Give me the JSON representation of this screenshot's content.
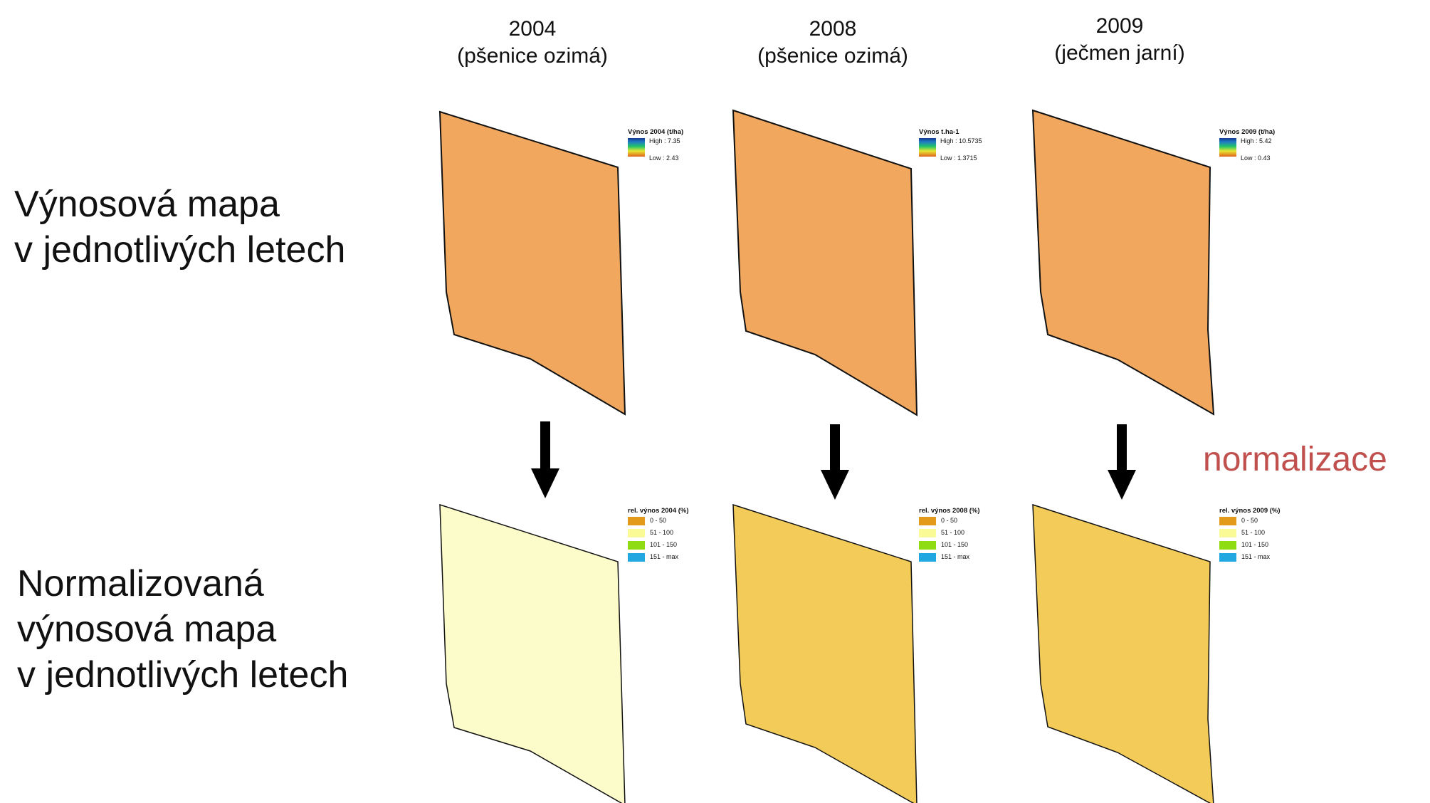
{
  "row_labels": {
    "yield": [
      "Výnosová mapa",
      "v jednotlivých letech"
    ],
    "normalized": [
      "Normalizovaná",
      "výnosová mapa",
      "v jednotlivých letech"
    ]
  },
  "columns": [
    {
      "year": "2004",
      "crop": "(pšenice ozimá)",
      "yield_legend": {
        "title": "Výnos 2004 (t/ha)",
        "high": "High : 7.35",
        "low": "Low : 2.43"
      },
      "norm_legend_title": "rel. výnos 2004 (%)"
    },
    {
      "year": "2008",
      "crop": "(pšenice ozimá)",
      "yield_legend": {
        "title": "Výnos t.ha-1",
        "high": "High : 10.5735",
        "low": "Low : 1.3715"
      },
      "norm_legend_title": "rel. výnos 2008 (%)"
    },
    {
      "year": "2009",
      "crop": "(ječmen jarní)",
      "yield_legend": {
        "title": "Výnos 2009 (t/ha)",
        "high": "High : 5.42",
        "low": "Low : 0.43"
      },
      "norm_legend_title": "rel. výnos 2009 (%)"
    }
  ],
  "norm_classes": [
    {
      "label": "0 - 50",
      "color": "#e39a1a"
    },
    {
      "label": "51 - 100",
      "color": "#fafa96"
    },
    {
      "label": "101 - 150",
      "color": "#8fdc12"
    },
    {
      "label": "151 - max",
      "color": "#22a8e0"
    }
  ],
  "normalization_label": "normalizace",
  "colors": {
    "accent": "#c0504d"
  }
}
